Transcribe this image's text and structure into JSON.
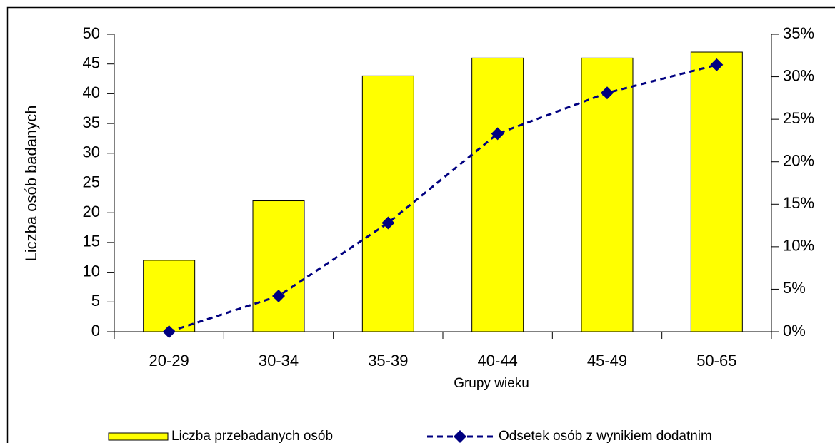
{
  "chart_data": {
    "type": "bar",
    "categories": [
      "20-29",
      "30-34",
      "35-39",
      "40-44",
      "45-49",
      "50-65"
    ],
    "xlabel": "Grupy wieku",
    "ylabel": "Liczba osób badanych",
    "series": [
      {
        "name": "Liczba przebadanych osób",
        "type": "bar",
        "color": "#ffff00",
        "values": [
          12,
          22,
          43,
          46,
          46,
          47
        ]
      },
      {
        "name": "Odsetek osób z wynikiem dodatnim",
        "type": "line",
        "axis": "y2",
        "color": "#000080",
        "values": [
          0,
          4.2,
          12.8,
          23.3,
          28.1,
          31.4
        ]
      }
    ],
    "ylim": [
      0,
      50
    ],
    "yticks": [
      0,
      5,
      10,
      15,
      20,
      25,
      30,
      35,
      40,
      45,
      50
    ],
    "y2lim": [
      0,
      35
    ],
    "y2ticks": [
      {
        "value": 0,
        "label": "0%"
      },
      {
        "value": 5,
        "label": "5%"
      },
      {
        "value": 10,
        "label": "10%"
      },
      {
        "value": 15,
        "label": "15%"
      },
      {
        "value": 20,
        "label": "20%"
      },
      {
        "value": 25,
        "label": "25%"
      },
      {
        "value": 30,
        "label": "30%"
      },
      {
        "value": 35,
        "label": "35%"
      }
    ],
    "legend": "bottom"
  }
}
